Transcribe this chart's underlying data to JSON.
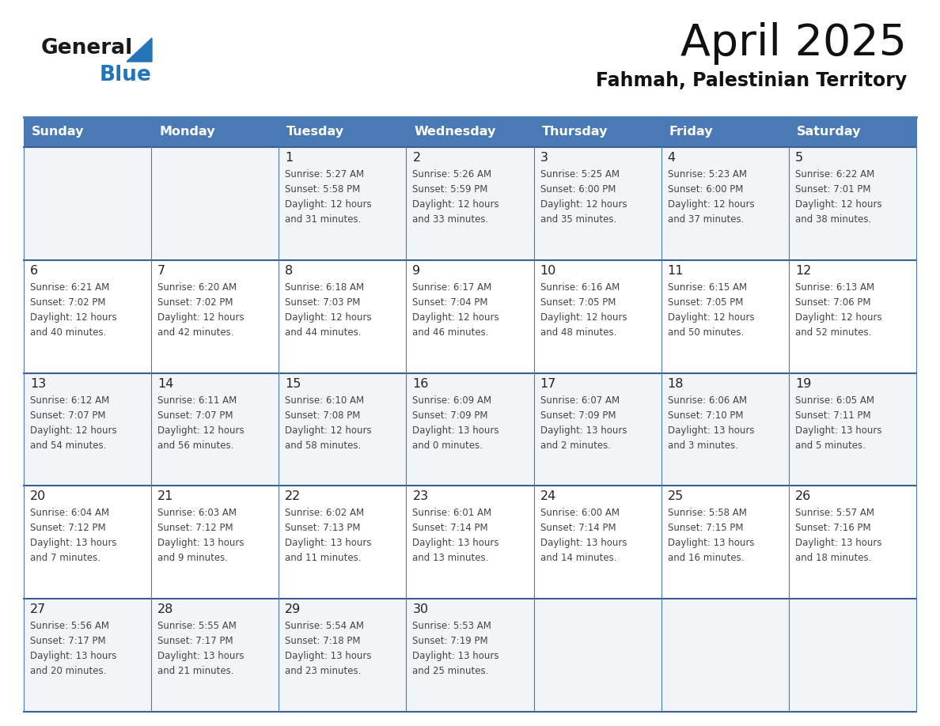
{
  "title": "April 2025",
  "subtitle": "Fahmah, Palestinian Territory",
  "header_color": "#4a7ab5",
  "header_text_color": "#ffffff",
  "cell_bg_color": "#ffffff",
  "row_alt_color": "#f2f5f8",
  "day_number_color": "#222222",
  "cell_text_color": "#444444",
  "grid_line_color": "#4a7ab5",
  "separator_line_color": "#3a6090",
  "logo_black": "#1a1a1a",
  "logo_blue": "#2475b8",
  "triangle_color": "#2475b8",
  "days_of_week": [
    "Sunday",
    "Monday",
    "Tuesday",
    "Wednesday",
    "Thursday",
    "Friday",
    "Saturday"
  ],
  "weeks": [
    [
      {
        "day": "",
        "info": ""
      },
      {
        "day": "",
        "info": ""
      },
      {
        "day": "1",
        "info": "Sunrise: 5:27 AM\nSunset: 5:58 PM\nDaylight: 12 hours\nand 31 minutes."
      },
      {
        "day": "2",
        "info": "Sunrise: 5:26 AM\nSunset: 5:59 PM\nDaylight: 12 hours\nand 33 minutes."
      },
      {
        "day": "3",
        "info": "Sunrise: 5:25 AM\nSunset: 6:00 PM\nDaylight: 12 hours\nand 35 minutes."
      },
      {
        "day": "4",
        "info": "Sunrise: 5:23 AM\nSunset: 6:00 PM\nDaylight: 12 hours\nand 37 minutes."
      },
      {
        "day": "5",
        "info": "Sunrise: 6:22 AM\nSunset: 7:01 PM\nDaylight: 12 hours\nand 38 minutes."
      }
    ],
    [
      {
        "day": "6",
        "info": "Sunrise: 6:21 AM\nSunset: 7:02 PM\nDaylight: 12 hours\nand 40 minutes."
      },
      {
        "day": "7",
        "info": "Sunrise: 6:20 AM\nSunset: 7:02 PM\nDaylight: 12 hours\nand 42 minutes."
      },
      {
        "day": "8",
        "info": "Sunrise: 6:18 AM\nSunset: 7:03 PM\nDaylight: 12 hours\nand 44 minutes."
      },
      {
        "day": "9",
        "info": "Sunrise: 6:17 AM\nSunset: 7:04 PM\nDaylight: 12 hours\nand 46 minutes."
      },
      {
        "day": "10",
        "info": "Sunrise: 6:16 AM\nSunset: 7:05 PM\nDaylight: 12 hours\nand 48 minutes."
      },
      {
        "day": "11",
        "info": "Sunrise: 6:15 AM\nSunset: 7:05 PM\nDaylight: 12 hours\nand 50 minutes."
      },
      {
        "day": "12",
        "info": "Sunrise: 6:13 AM\nSunset: 7:06 PM\nDaylight: 12 hours\nand 52 minutes."
      }
    ],
    [
      {
        "day": "13",
        "info": "Sunrise: 6:12 AM\nSunset: 7:07 PM\nDaylight: 12 hours\nand 54 minutes."
      },
      {
        "day": "14",
        "info": "Sunrise: 6:11 AM\nSunset: 7:07 PM\nDaylight: 12 hours\nand 56 minutes."
      },
      {
        "day": "15",
        "info": "Sunrise: 6:10 AM\nSunset: 7:08 PM\nDaylight: 12 hours\nand 58 minutes."
      },
      {
        "day": "16",
        "info": "Sunrise: 6:09 AM\nSunset: 7:09 PM\nDaylight: 13 hours\nand 0 minutes."
      },
      {
        "day": "17",
        "info": "Sunrise: 6:07 AM\nSunset: 7:09 PM\nDaylight: 13 hours\nand 2 minutes."
      },
      {
        "day": "18",
        "info": "Sunrise: 6:06 AM\nSunset: 7:10 PM\nDaylight: 13 hours\nand 3 minutes."
      },
      {
        "day": "19",
        "info": "Sunrise: 6:05 AM\nSunset: 7:11 PM\nDaylight: 13 hours\nand 5 minutes."
      }
    ],
    [
      {
        "day": "20",
        "info": "Sunrise: 6:04 AM\nSunset: 7:12 PM\nDaylight: 13 hours\nand 7 minutes."
      },
      {
        "day": "21",
        "info": "Sunrise: 6:03 AM\nSunset: 7:12 PM\nDaylight: 13 hours\nand 9 minutes."
      },
      {
        "day": "22",
        "info": "Sunrise: 6:02 AM\nSunset: 7:13 PM\nDaylight: 13 hours\nand 11 minutes."
      },
      {
        "day": "23",
        "info": "Sunrise: 6:01 AM\nSunset: 7:14 PM\nDaylight: 13 hours\nand 13 minutes."
      },
      {
        "day": "24",
        "info": "Sunrise: 6:00 AM\nSunset: 7:14 PM\nDaylight: 13 hours\nand 14 minutes."
      },
      {
        "day": "25",
        "info": "Sunrise: 5:58 AM\nSunset: 7:15 PM\nDaylight: 13 hours\nand 16 minutes."
      },
      {
        "day": "26",
        "info": "Sunrise: 5:57 AM\nSunset: 7:16 PM\nDaylight: 13 hours\nand 18 minutes."
      }
    ],
    [
      {
        "day": "27",
        "info": "Sunrise: 5:56 AM\nSunset: 7:17 PM\nDaylight: 13 hours\nand 20 minutes."
      },
      {
        "day": "28",
        "info": "Sunrise: 5:55 AM\nSunset: 7:17 PM\nDaylight: 13 hours\nand 21 minutes."
      },
      {
        "day": "29",
        "info": "Sunrise: 5:54 AM\nSunset: 7:18 PM\nDaylight: 13 hours\nand 23 minutes."
      },
      {
        "day": "30",
        "info": "Sunrise: 5:53 AM\nSunset: 7:19 PM\nDaylight: 13 hours\nand 25 minutes."
      },
      {
        "day": "",
        "info": ""
      },
      {
        "day": "",
        "info": ""
      },
      {
        "day": "",
        "info": ""
      }
    ]
  ]
}
